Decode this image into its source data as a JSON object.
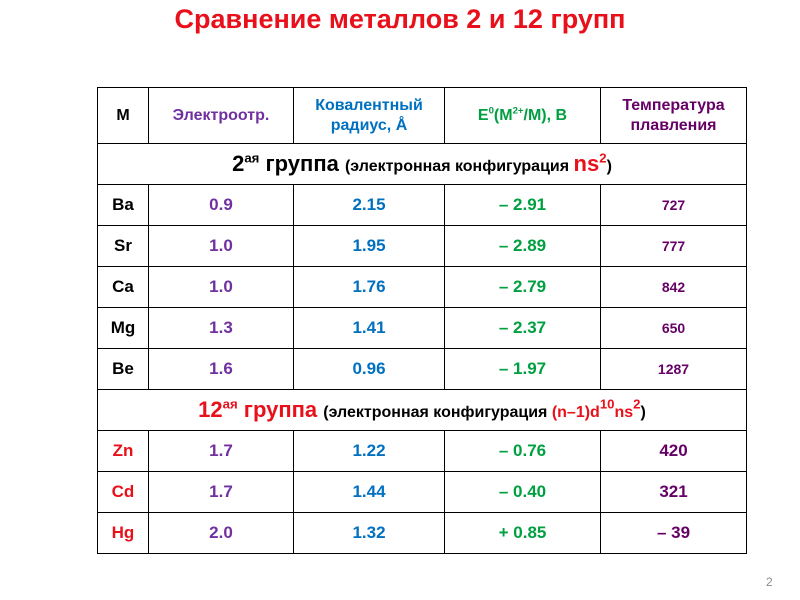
{
  "title": "Сравнение металлов 2 и 12 групп",
  "slide_number": "2",
  "colors": {
    "title": "#e8101a",
    "purple": "#7030a0",
    "blue": "#0070c0",
    "green": "#00a040",
    "dark_purple": "#660066",
    "red": "#e8101a",
    "black": "#000000"
  },
  "headers": {
    "metal": "M",
    "electroneg": "Электроотр.",
    "radius_line1": "Ковалентный",
    "radius_line2": "радиус, Å",
    "potential_e": "E",
    "potential_sup": "0",
    "potential_mid": "(M",
    "potential_charge": "2+",
    "potential_tail": "/M), B",
    "melting_line1": "Температура",
    "melting_line2": "плавления"
  },
  "group2": {
    "num": "2",
    "suffix": "ая",
    "word": " группа ",
    "config_label": "(электронная конфигурация ",
    "config_ns": "ns",
    "config_exp": "2",
    "close": ")"
  },
  "group12": {
    "num": "12",
    "suffix": "ая",
    "word": " группа ",
    "config_label": "(электронная конфигурация ",
    "config_a": "(n–1)d",
    "config_a_exp": "10",
    "config_b": "ns",
    "config_b_exp": "2",
    "close": ")"
  },
  "group2_rows": [
    {
      "metal": "Ba",
      "electroneg": "0.9",
      "radius": "2.15",
      "potential": "– 2.91",
      "melting": "727"
    },
    {
      "metal": "Sr",
      "electroneg": "1.0",
      "radius": "1.95",
      "potential": "– 2.89",
      "melting": "777"
    },
    {
      "metal": "Ca",
      "electroneg": "1.0",
      "radius": "1.76",
      "potential": "– 2.79",
      "melting": "842"
    },
    {
      "metal": "Mg",
      "electroneg": "1.3",
      "radius": "1.41",
      "potential": "– 2.37",
      "melting": "650"
    },
    {
      "metal": "Be",
      "electroneg": "1.6",
      "radius": "0.96",
      "potential": "– 1.97",
      "melting": "1287"
    }
  ],
  "group12_rows": [
    {
      "metal": "Zn",
      "electroneg": "1.7",
      "radius": "1.22",
      "potential": "– 0.76",
      "melting": "420"
    },
    {
      "metal": "Cd",
      "electroneg": "1.7",
      "radius": "1.44",
      "potential": "– 0.40",
      "melting": "321"
    },
    {
      "metal": "Hg",
      "electroneg": "2.0",
      "radius": "1.32",
      "potential": "+ 0.85",
      "melting": "– 39"
    }
  ]
}
